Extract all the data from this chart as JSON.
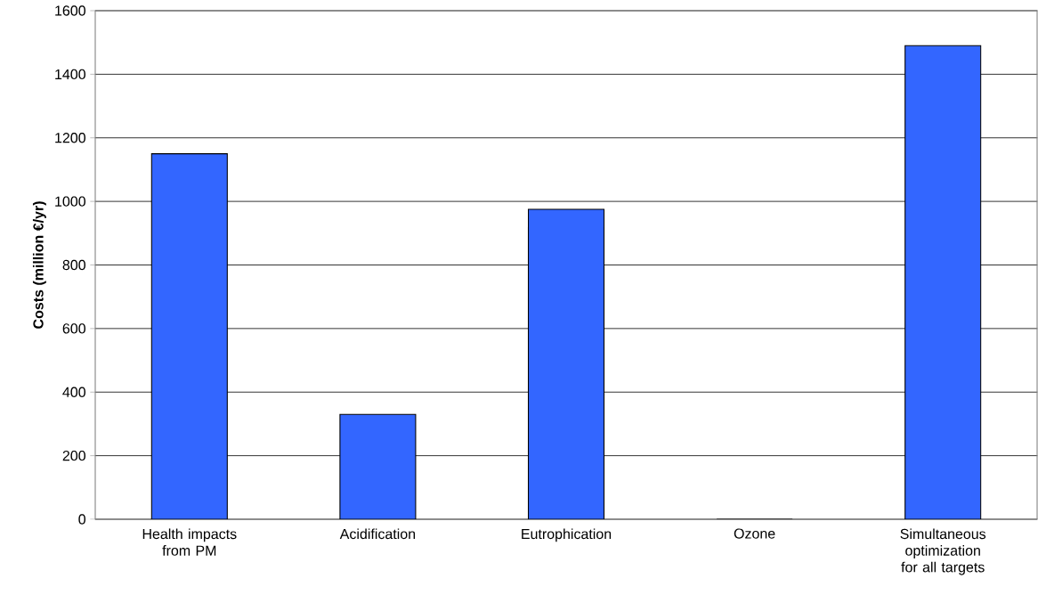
{
  "chart_data": {
    "type": "bar",
    "ylabel": "Costs (million €/yr)",
    "categories": [
      "Health impacts from PM",
      "Acidification",
      "Eutrophication",
      "Ozone",
      "Simultaneous optimization for all targets"
    ],
    "values": [
      1150,
      330,
      975,
      0,
      1490
    ],
    "color": "#3366ff",
    "ylim": [
      0,
      1600
    ],
    "yticks": [
      0,
      200,
      400,
      600,
      800,
      1000,
      1200,
      1400,
      1600
    ],
    "grid": "y"
  }
}
